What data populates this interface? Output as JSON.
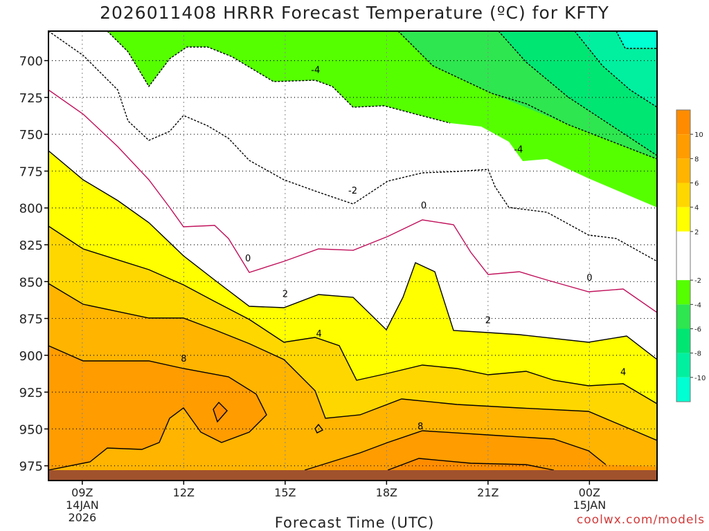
{
  "chart_data": {
    "type": "contour",
    "title": "2026011408 HRRR Forecast Temperature (ºC) for KFTY",
    "xlabel": "Forecast Time (UTC)",
    "ylabel": "",
    "credit": "coolwx.com/models",
    "x_ticks": [
      {
        "label": "09Z",
        "sub1": "14JAN",
        "sub2": "2026",
        "hour": 9
      },
      {
        "label": "12Z",
        "sub1": "",
        "sub2": "",
        "hour": 12
      },
      {
        "label": "15Z",
        "sub1": "",
        "sub2": "",
        "hour": 15
      },
      {
        "label": "18Z",
        "sub1": "",
        "sub2": "",
        "hour": 18
      },
      {
        "label": "21Z",
        "sub1": "",
        "sub2": "",
        "hour": 21
      },
      {
        "label": "00Z",
        "sub1": "15JAN",
        "sub2": "",
        "hour": 24
      }
    ],
    "xlim_hours": [
      8,
      26
    ],
    "y_ticks": [
      700,
      725,
      750,
      775,
      800,
      825,
      850,
      875,
      900,
      925,
      950,
      975
    ],
    "ylim_hpa": [
      680,
      985
    ],
    "colorbar": {
      "labels": [
        "10",
        "8",
        "6",
        "4",
        "2",
        "-2",
        "-4",
        "-6",
        "-8",
        "-10"
      ],
      "bands": [
        {
          "from": 10,
          "to": 12,
          "color": "#ff8c00"
        },
        {
          "from": 8,
          "to": 10,
          "color": "#ff9c00"
        },
        {
          "from": 6,
          "to": 8,
          "color": "#ffb400"
        },
        {
          "from": 4,
          "to": 6,
          "color": "#ffd700"
        },
        {
          "from": 2,
          "to": 4,
          "color": "#ffff00"
        },
        {
          "from": -2,
          "to": 2,
          "color": "#ffffff"
        },
        {
          "from": -4,
          "to": -2,
          "color": "#55ff00"
        },
        {
          "from": -6,
          "to": -4,
          "color": "#2ee64f"
        },
        {
          "from": -8,
          "to": -6,
          "color": "#00e673"
        },
        {
          "from": -10,
          "to": -8,
          "color": "#00f0a0"
        },
        {
          "from": -12,
          "to": -10,
          "color": "#00ffd2"
        }
      ]
    },
    "contour_labels": [
      {
        "text": "-4",
        "hour": 15.9,
        "hpa": 706
      },
      {
        "text": "-4",
        "hour": 21.9,
        "hpa": 760
      },
      {
        "text": "-2",
        "hour": 17.0,
        "hpa": 788
      },
      {
        "text": "0",
        "hour": 13.9,
        "hpa": 834
      },
      {
        "text": "0",
        "hour": 19.1,
        "hpa": 798
      },
      {
        "text": "0",
        "hour": 24.0,
        "hpa": 847
      },
      {
        "text": "2",
        "hour": 15.0,
        "hpa": 858
      },
      {
        "text": "2",
        "hour": 21.0,
        "hpa": 876
      },
      {
        "text": "4",
        "hour": 16.0,
        "hpa": 885
      },
      {
        "text": "4",
        "hour": 25.0,
        "hpa": 911
      },
      {
        "text": "8",
        "hour": 12.0,
        "hpa": 902
      },
      {
        "text": "8",
        "hour": 19.0,
        "hpa": 948
      }
    ],
    "colors": {
      "ground": "#a0522d",
      "zero_line": "#c0105a",
      "contour": "#000000",
      "grid": "#000000"
    }
  }
}
